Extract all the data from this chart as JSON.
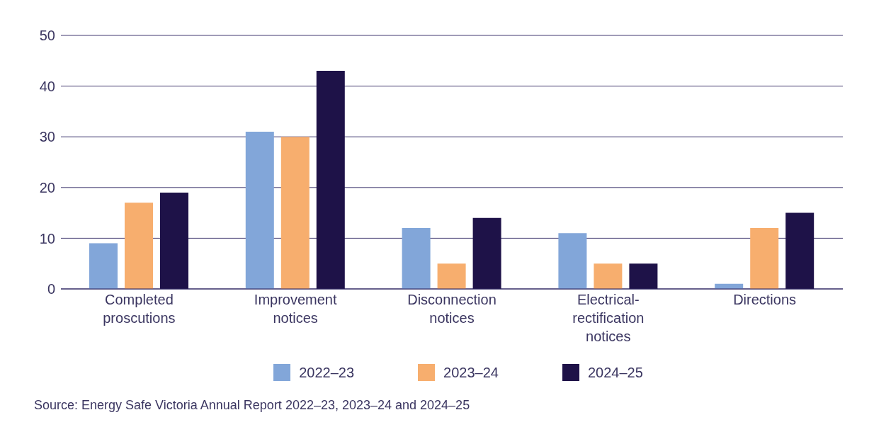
{
  "chart_data": {
    "type": "bar",
    "categories": [
      "Completed proscutions",
      "Improvement notices",
      "Disconnection notices",
      "Electrical-rectification notices",
      "Directions"
    ],
    "series": [
      {
        "name": "2022–23",
        "color": "#82a6d9",
        "values": [
          9,
          31,
          12,
          11,
          1
        ]
      },
      {
        "name": "2023–24",
        "color": "#f7ae6e",
        "values": [
          17,
          30,
          5,
          5,
          12
        ]
      },
      {
        "name": "2024–25",
        "color": "#1e1248",
        "values": [
          19,
          43,
          14,
          5,
          15
        ]
      }
    ],
    "ylim": [
      0,
      50
    ],
    "yticks": [
      0,
      10,
      20,
      30,
      40,
      50
    ],
    "grid": "y",
    "legend": "bottom",
    "annotations": [
      "Source: Energy Safe Victoria Annual Report 2022–23, 2023–24 and 2024–25"
    ]
  }
}
